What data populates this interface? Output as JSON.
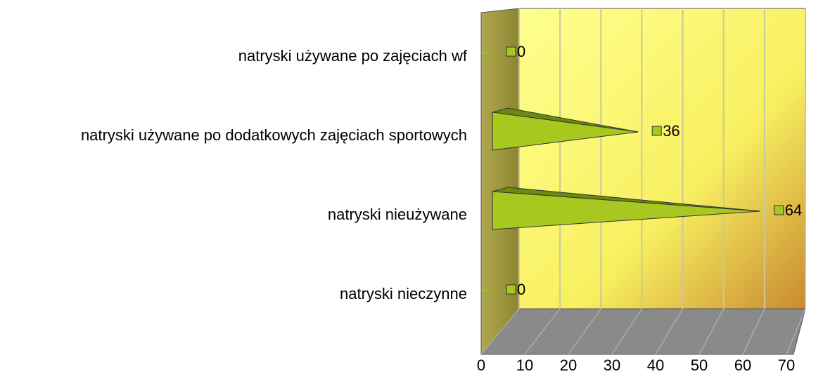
{
  "chart_data": {
    "type": "bar",
    "orientation": "horizontal",
    "categories": [
      "natryski używane po zajęciach wf",
      "natryski używane po dodatkowych zajęciach sportowych",
      "natryski nieużywane",
      "natryski nieczynne"
    ],
    "values": [
      0,
      36,
      64,
      0
    ],
    "color": "#a8c820",
    "xlim": [
      0,
      70
    ],
    "xticks": [
      0,
      10,
      20,
      30,
      40,
      50,
      60,
      70
    ],
    "grid": true
  }
}
